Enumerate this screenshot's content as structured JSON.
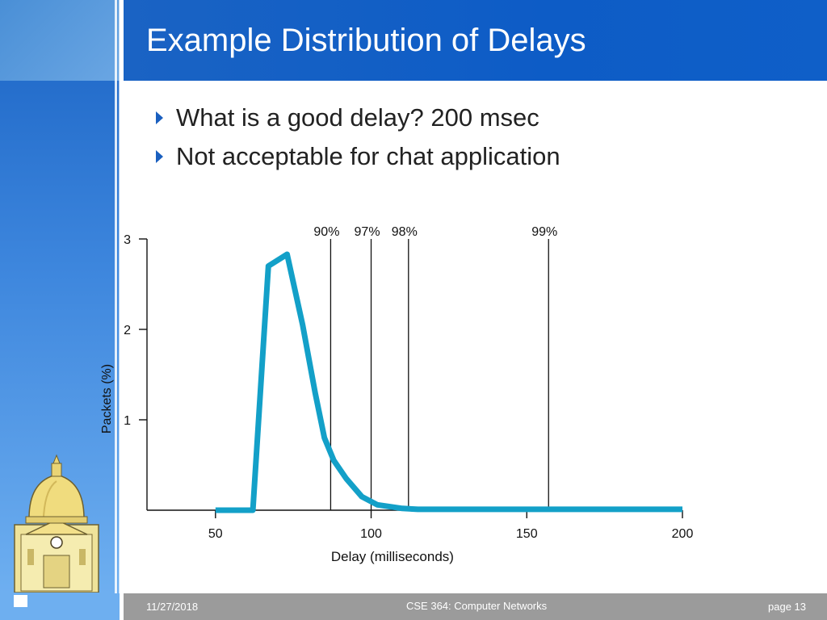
{
  "slide": {
    "title": "Example Distribution of Delays",
    "bullets": [
      "What is a good delay? 200 msec",
      "Not acceptable for chat application"
    ]
  },
  "footer": {
    "date": "11/27/2018",
    "course": "CSE 364: Computer Networks",
    "page": "page 13"
  },
  "colors": {
    "accent_blue": "#0d5cc6",
    "curve": "#13a0c8",
    "footer_gray": "#9b9b9b"
  },
  "chart_data": {
    "type": "line",
    "title": "",
    "xlabel": "Delay (milliseconds)",
    "ylabel": "Packets (%)",
    "xlim": [
      28,
      200
    ],
    "ylim": [
      0,
      3
    ],
    "xticks": [
      50,
      100,
      150,
      200
    ],
    "yticks": [
      1,
      2,
      3
    ],
    "grid": false,
    "series": [
      {
        "points": [
          [
            50,
            0
          ],
          [
            62,
            0
          ],
          [
            67,
            2.7
          ],
          [
            73,
            2.83
          ],
          [
            78,
            2.05
          ],
          [
            82,
            1.3
          ],
          [
            85,
            0.8
          ],
          [
            88,
            0.55
          ],
          [
            92,
            0.35
          ],
          [
            97,
            0.15
          ],
          [
            102,
            0.06
          ],
          [
            110,
            0.02
          ],
          [
            115,
            0.01
          ],
          [
            130,
            0.01
          ],
          [
            200,
            0.01
          ]
        ]
      }
    ],
    "markers": [
      {
        "label": "90%",
        "x": 87
      },
      {
        "label": "97%",
        "x": 100
      },
      {
        "label": "98%",
        "x": 112
      },
      {
        "label": "99%",
        "x": 157
      }
    ]
  }
}
